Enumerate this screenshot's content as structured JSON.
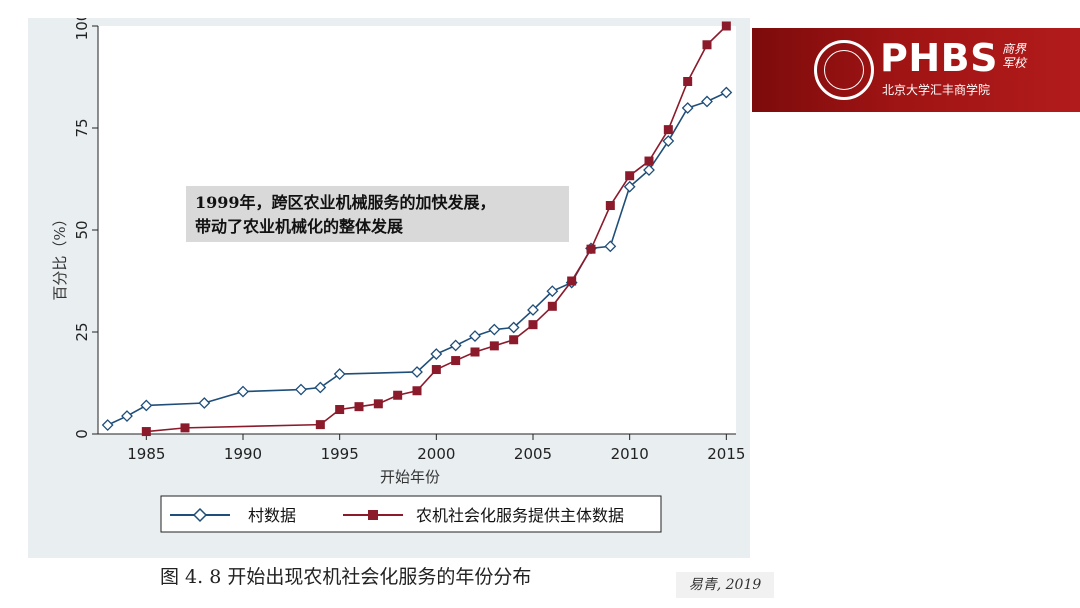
{
  "chart_data": {
    "type": "line",
    "title": "",
    "xlabel": "开始年份",
    "ylabel": "百分比（%）",
    "xlim": [
      1982.5,
      2015.5
    ],
    "ylim": [
      0,
      100
    ],
    "xticks": [
      1985,
      1990,
      1995,
      2000,
      2005,
      2010,
      2015
    ],
    "yticks": [
      0,
      25,
      50,
      75,
      100
    ],
    "legend_position": "bottom",
    "grid": false,
    "series": [
      {
        "name": "村数据",
        "color": "#1f4e79",
        "marker": "diamond",
        "points": [
          [
            1983,
            2.2
          ],
          [
            1984,
            4.4
          ],
          [
            1985,
            7.0
          ],
          [
            1988,
            7.6
          ],
          [
            1990,
            10.4
          ],
          [
            1993,
            10.9
          ],
          [
            1994,
            11.4
          ],
          [
            1995,
            14.7
          ],
          [
            1999,
            15.2
          ],
          [
            2000,
            19.6
          ],
          [
            2001,
            21.7
          ],
          [
            2002,
            24.0
          ],
          [
            2003,
            25.6
          ],
          [
            2004,
            26.1
          ],
          [
            2005,
            30.4
          ],
          [
            2006,
            35.0
          ],
          [
            2007,
            37.1
          ],
          [
            2008,
            45.5
          ],
          [
            2009,
            46.0
          ],
          [
            2010,
            60.6
          ],
          [
            2011,
            64.7
          ],
          [
            2012,
            71.8
          ],
          [
            2013,
            79.9
          ],
          [
            2014,
            81.5
          ],
          [
            2015,
            83.7
          ]
        ]
      },
      {
        "name": "农机社会化服务提供主体数据",
        "color": "#8b1a2b",
        "marker": "square",
        "points": [
          [
            1985,
            0.6
          ],
          [
            1987,
            1.5
          ],
          [
            1994,
            2.3
          ],
          [
            1995,
            6.0
          ],
          [
            1996,
            6.7
          ],
          [
            1997,
            7.4
          ],
          [
            1998,
            9.5
          ],
          [
            1999,
            10.6
          ],
          [
            2000,
            15.8
          ],
          [
            2001,
            18.0
          ],
          [
            2002,
            20.1
          ],
          [
            2003,
            21.6
          ],
          [
            2004,
            23.1
          ],
          [
            2005,
            26.8
          ],
          [
            2006,
            31.3
          ],
          [
            2007,
            37.5
          ],
          [
            2008,
            45.3
          ],
          [
            2009,
            56.0
          ],
          [
            2010,
            63.3
          ],
          [
            2011,
            66.9
          ],
          [
            2012,
            74.6
          ],
          [
            2013,
            86.4
          ],
          [
            2014,
            95.4
          ],
          [
            2015,
            100.0
          ]
        ]
      }
    ],
    "annotation": {
      "lines": [
        "1999年，跨区农业机械服务的加快发展，",
        "带动了农业机械化的整体发展"
      ]
    }
  },
  "caption": "图  4. 8  开始出现农机社会化服务的年份分布",
  "source": "易青, 2019",
  "logo": {
    "main": "PHBS",
    "sub": "北京大学汇丰商学院",
    "calligraphy": "商界军校"
  },
  "colors": {
    "panel_bg": "#e9eef1",
    "logo_red": "#a01414"
  }
}
